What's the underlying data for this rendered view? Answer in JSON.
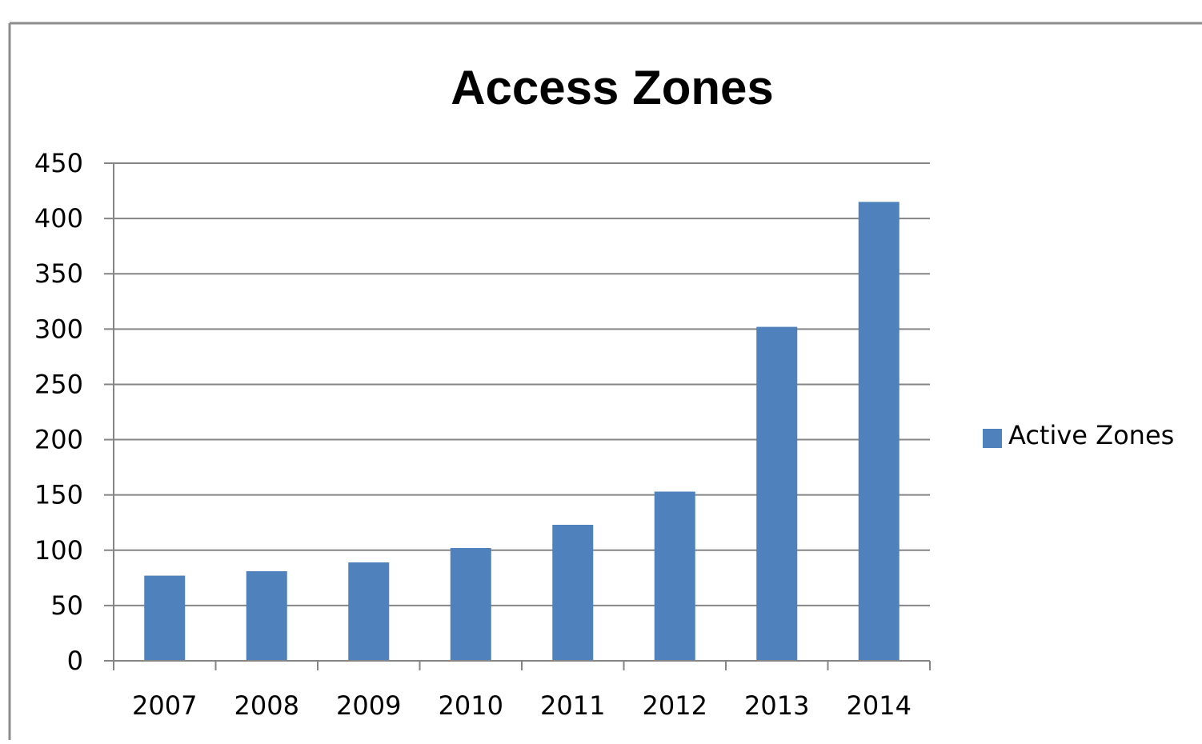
{
  "chart_data": {
    "type": "bar",
    "title": "Access Zones",
    "categories": [
      "2007",
      "2008",
      "2009",
      "2010",
      "2011",
      "2012",
      "2013",
      "2014"
    ],
    "series": [
      {
        "name": "Active Zones",
        "values": [
          77,
          81,
          89,
          102,
          123,
          153,
          302,
          415
        ],
        "color": "#4f81bd"
      }
    ],
    "ylim": [
      0,
      450
    ],
    "yticks": [
      0,
      50,
      100,
      150,
      200,
      250,
      300,
      350,
      400,
      450
    ],
    "ytick_labels": [
      "0",
      "50",
      "100",
      "150",
      "200",
      "250",
      "300",
      "350",
      "400",
      "450"
    ],
    "xlabel": "",
    "ylabel": "",
    "grid": true,
    "legend": "right"
  }
}
